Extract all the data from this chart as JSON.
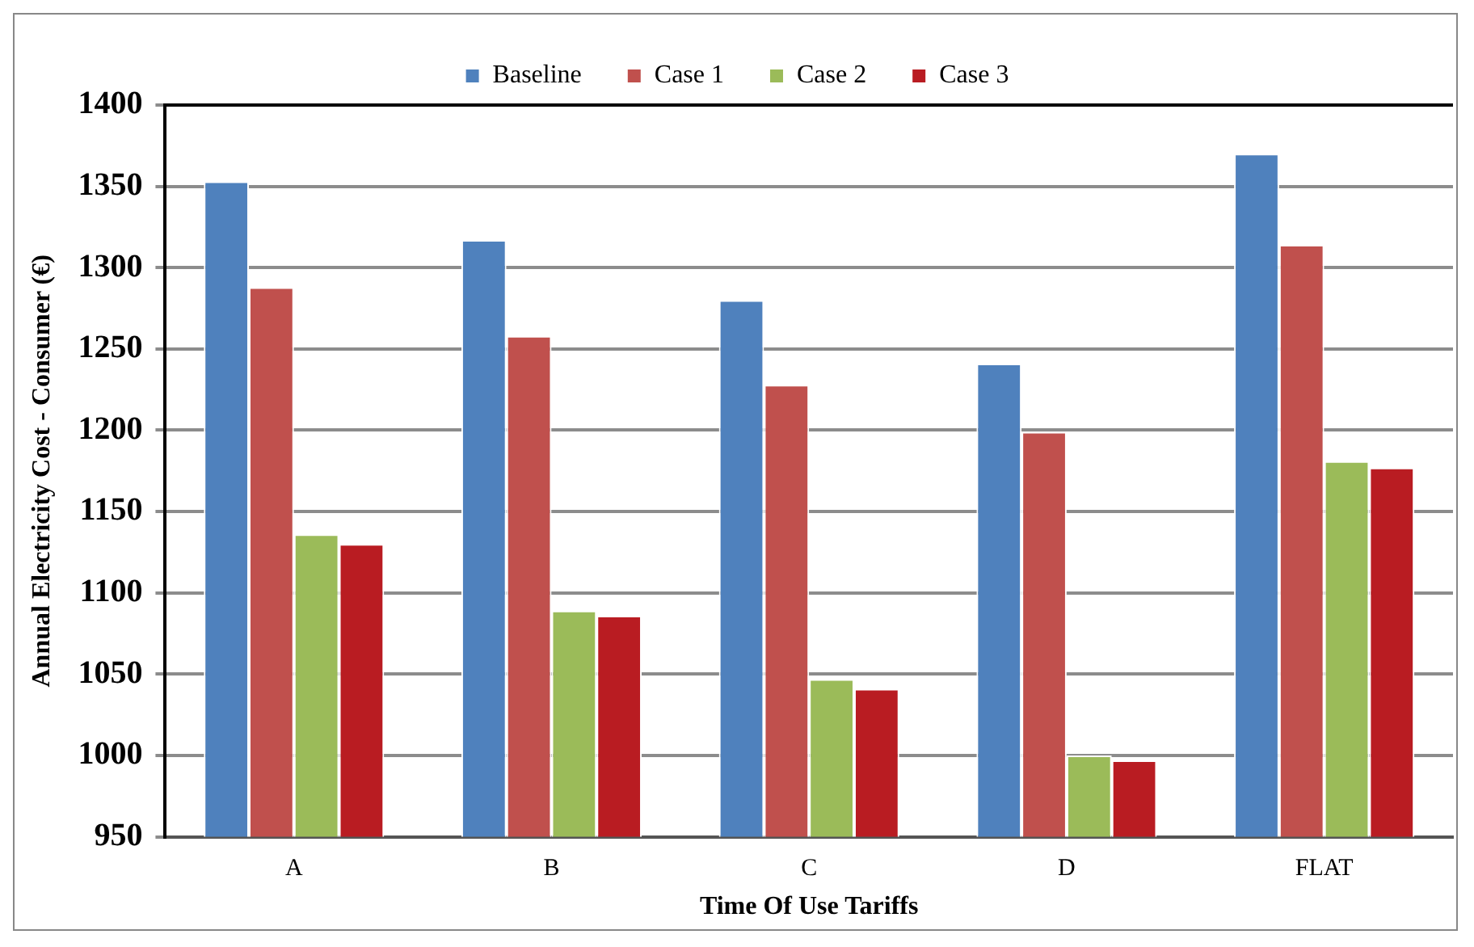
{
  "chart_data": {
    "type": "bar",
    "xlabel": "Time Of Use Tariffs",
    "ylabel": "Annual Electricity Cost - Consumer (€)",
    "categories": [
      "A",
      "B",
      "C",
      "D",
      "FLAT"
    ],
    "series": [
      {
        "name": "Baseline",
        "color": "#4f81bd",
        "values": [
          1353,
          1317,
          1280,
          1241,
          1370
        ]
      },
      {
        "name": "Case 1",
        "color": "#c0504d",
        "values": [
          1288,
          1258,
          1228,
          1199,
          1314
        ]
      },
      {
        "name": "Case 2",
        "color": "#9bbb59",
        "values": [
          1136,
          1089,
          1047,
          1000,
          1181
        ]
      },
      {
        "name": "Case 3",
        "color": "#b91c22",
        "values": [
          1130,
          1086,
          1041,
          997,
          1177
        ]
      }
    ],
    "ylim": [
      950,
      1400
    ],
    "yticks": [
      950,
      1000,
      1050,
      1100,
      1150,
      1200,
      1250,
      1300,
      1350,
      1400
    ],
    "grid": "y",
    "legend": "top"
  }
}
